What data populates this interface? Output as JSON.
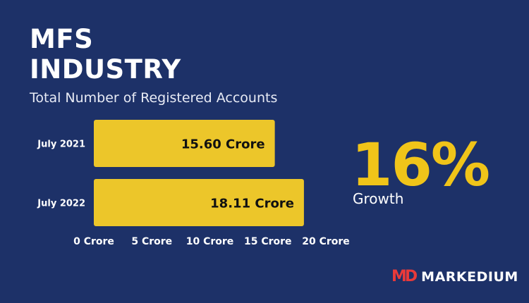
{
  "header": {
    "title_line1": "MFS",
    "title_line2": "INDUSTRY",
    "subtitle": "Total Number of Registered Accounts"
  },
  "growth": {
    "value": "16%",
    "label": "Growth"
  },
  "logo": {
    "mark": "MD",
    "text": "MARKEDIUM"
  },
  "colors": {
    "background": "#1d3168",
    "bar": "#ecc62a",
    "accent": "#f0c419",
    "logo_mark": "#e83a3a"
  },
  "chart_data": {
    "type": "bar",
    "orientation": "horizontal",
    "title": "Total Number of Registered Accounts",
    "categories": [
      "July 2021",
      "July 2022"
    ],
    "values": [
      15.6,
      18.11
    ],
    "value_labels": [
      "15.60 Crore",
      "18.11 Crore"
    ],
    "xlim": [
      0,
      20
    ],
    "xticks": [
      0,
      5,
      10,
      15,
      20
    ],
    "xtick_labels": [
      "0 Crore",
      "5 Crore",
      "10 Crore",
      "15 Crore",
      "20 Crore"
    ],
    "grid": false,
    "legend": "none"
  }
}
